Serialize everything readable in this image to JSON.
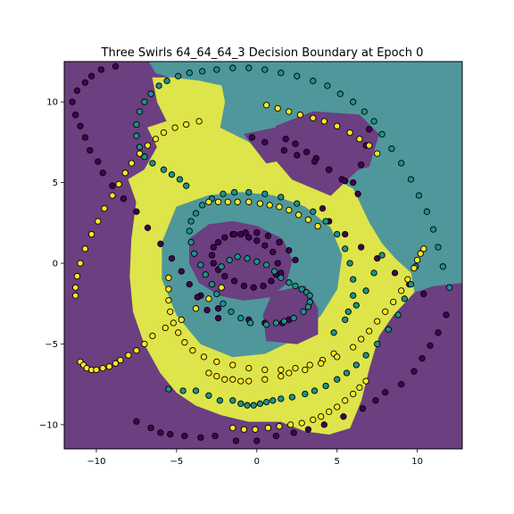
{
  "chart_data": {
    "type": "scatter",
    "title": "Three Swirls 64_64_64_3 Decision Boundary at Epoch 0",
    "xlabel": "",
    "ylabel": "",
    "xlim": [
      -12,
      12.8
    ],
    "ylim": [
      -11.5,
      12.5
    ],
    "xticks": [
      -10,
      -5,
      0,
      5,
      10
    ],
    "yticks": [
      -10,
      -5,
      0,
      5,
      10
    ],
    "xtick_labels": [
      "−10",
      "−5",
      "0",
      "5",
      "10"
    ],
    "ytick_labels": [
      "−10",
      "−5",
      "0",
      "5",
      "10"
    ],
    "grid": false,
    "legend": "none",
    "colors": {
      "class_0": "#440154",
      "class_1": "#21918c",
      "class_2": "#fde725",
      "region_0": "#6b3f80",
      "region_1": "#4f979a",
      "region_2": "#dde54a",
      "point_edge": "#000000"
    },
    "background_regions": [
      {
        "class": 0,
        "polygon": [
          [
            -12,
            12.5
          ],
          [
            -12,
            -11.5
          ],
          [
            12.8,
            -11.5
          ],
          [
            12.8,
            12.5
          ]
        ]
      },
      {
        "class": 1,
        "polygon": [
          [
            -6.7,
            12.5
          ],
          [
            12.8,
            12.5
          ],
          [
            12.8,
            -1.2
          ],
          [
            11.0,
            -1.4
          ],
          [
            9.8,
            -1.8
          ],
          [
            8.5,
            -3.2
          ],
          [
            7.6,
            -4.5
          ],
          [
            7.0,
            -6.5
          ],
          [
            6.5,
            -8.5
          ],
          [
            5.8,
            -10.2
          ],
          [
            4.5,
            -10.6
          ],
          [
            3.0,
            -10.4
          ],
          [
            1.5,
            -9.8
          ],
          [
            -0.5,
            -9.8
          ],
          [
            -2.2,
            -9.4
          ],
          [
            -3.8,
            -8.8
          ],
          [
            -5.0,
            -8.0
          ],
          [
            -6.0,
            -6.8
          ],
          [
            -6.8,
            -5.0
          ],
          [
            -7.3,
            -3.0
          ],
          [
            -7.4,
            -0.8
          ],
          [
            -7.2,
            1.5
          ],
          [
            -6.5,
            3.8
          ],
          [
            -5.5,
            5.6
          ],
          [
            -4.0,
            7.2
          ],
          [
            -2.8,
            8.1
          ],
          [
            -2.3,
            8.4
          ],
          [
            -2.0,
            10.0
          ],
          [
            -2.2,
            11.0
          ],
          [
            -3.6,
            11.3
          ],
          [
            -5.3,
            11.5
          ],
          [
            -6.3,
            11.8
          ]
        ]
      },
      {
        "class": 2,
        "polygon": [
          [
            -6.5,
            11.5
          ],
          [
            -5.3,
            11.5
          ],
          [
            -3.6,
            11.3
          ],
          [
            -2.2,
            11.0
          ],
          [
            -2.0,
            10.0
          ],
          [
            -2.3,
            8.4
          ],
          [
            -0.5,
            7.5
          ],
          [
            1.5,
            6.7
          ],
          [
            3.5,
            6.0
          ],
          [
            6.0,
            4.6
          ],
          [
            7.0,
            2.5
          ],
          [
            7.8,
            1.2
          ],
          [
            8.7,
            0.2
          ],
          [
            9.6,
            -0.6
          ],
          [
            9.8,
            -1.8
          ],
          [
            8.5,
            -3.2
          ],
          [
            7.6,
            -4.5
          ],
          [
            7.0,
            -6.5
          ],
          [
            6.5,
            -8.5
          ],
          [
            5.8,
            -10.2
          ],
          [
            4.5,
            -10.6
          ],
          [
            3.0,
            -10.4
          ],
          [
            1.5,
            -9.8
          ],
          [
            -0.5,
            -9.8
          ],
          [
            -2.2,
            -9.4
          ],
          [
            -3.8,
            -8.8
          ],
          [
            -5.0,
            -8.0
          ],
          [
            -6.0,
            -6.8
          ],
          [
            -7.0,
            -5.0
          ],
          [
            -7.7,
            -3.0
          ],
          [
            -7.9,
            -0.8
          ],
          [
            -7.8,
            1.5
          ],
          [
            -7.5,
            3.8
          ],
          [
            -8.0,
            5.2
          ],
          [
            -7.0,
            5.8
          ],
          [
            -6.2,
            7.2
          ],
          [
            -6.8,
            8.4
          ],
          [
            -5.6,
            8.8
          ],
          [
            -6.2,
            10.0
          ]
        ]
      },
      {
        "class": 1,
        "polygon": [
          [
            -5.0,
            3.5
          ],
          [
            -3.0,
            4.2
          ],
          [
            -1.0,
            4.4
          ],
          [
            1.0,
            4.2
          ],
          [
            3.0,
            3.5
          ],
          [
            4.6,
            2.2
          ],
          [
            5.3,
            0.5
          ],
          [
            5.0,
            -1.6
          ],
          [
            4.0,
            -3.2
          ],
          [
            2.6,
            -4.6
          ],
          [
            0.5,
            -5.6
          ],
          [
            -1.5,
            -5.8
          ],
          [
            -3.5,
            -5.0
          ],
          [
            -5.0,
            -3.2
          ],
          [
            -5.9,
            -1.0
          ],
          [
            -5.9,
            1.3
          ]
        ]
      },
      {
        "class": 0,
        "polygon": [
          [
            -4.2,
            1.5
          ],
          [
            -3.0,
            2.4
          ],
          [
            -1.5,
            2.6
          ],
          [
            0.0,
            2.3
          ],
          [
            1.6,
            1.5
          ],
          [
            2.2,
            0.2
          ],
          [
            1.8,
            -1.3
          ],
          [
            0.8,
            -2.1
          ],
          [
            -0.8,
            -2.3
          ],
          [
            -2.3,
            -2.0
          ],
          [
            -3.6,
            -1.2
          ],
          [
            -4.2,
            0.0
          ]
        ]
      },
      {
        "class": 0,
        "polygon": [
          [
            1.0,
            -1.8
          ],
          [
            3.0,
            -1.4
          ],
          [
            3.8,
            -2.8
          ],
          [
            3.8,
            -4.4
          ],
          [
            2.5,
            -5.0
          ],
          [
            0.6,
            -4.8
          ],
          [
            0.4,
            -3.2
          ]
        ]
      },
      {
        "class": 0,
        "polygon": [
          [
            1.2,
            8.5
          ],
          [
            3.5,
            9.4
          ],
          [
            6.4,
            9.2
          ],
          [
            7.6,
            8.0
          ],
          [
            7.0,
            6.0
          ],
          [
            6.3,
            5.8
          ],
          [
            4.6,
            4.2
          ],
          [
            2.2,
            5.2
          ],
          [
            1.0,
            6.6
          ]
        ]
      },
      {
        "class": 0,
        "polygon": [
          [
            -0.8,
            8.0
          ],
          [
            1.2,
            8.4
          ],
          [
            1.6,
            6.4
          ],
          [
            0.6,
            6.2
          ]
        ]
      }
    ],
    "series": [
      {
        "class": 0,
        "x": [
          -1.5,
          -1.0,
          -0.5,
          0.0,
          0.5,
          1.0,
          1.3,
          1.2,
          0.9,
          0.4,
          -0.2,
          -0.8,
          -1.4,
          -2.0,
          -2.4,
          -2.7,
          -2.8,
          -2.7,
          -2.4,
          -2.0,
          -1.4,
          -0.7,
          0.0,
          0.7,
          1.4,
          2.0,
          2.4,
          1.5,
          -3.5,
          -2.4,
          -0.5,
          0.5,
          1.6,
          2.0,
          -2.4,
          -3.1,
          -3.7,
          -4.2,
          -4.7,
          -5.3,
          -6.0,
          -6.8,
          -7.5,
          -8.3,
          -9.0,
          -9.6,
          -9.9,
          -10.4,
          -10.7,
          -11.0,
          -11.3,
          -11.5,
          -11.2,
          -10.7,
          -10.3,
          -9.7,
          -8.8,
          -7.5,
          -6.6,
          -6.0,
          -5.4,
          -4.5,
          -3.5,
          -2.6,
          -1.3,
          0.0,
          1.2,
          2.3,
          3.2,
          4.2,
          5.4,
          6.6,
          7.4,
          8.0,
          9.0,
          9.8,
          10.3,
          10.8,
          11.3,
          11.8,
          10.4,
          9.5,
          8.6,
          7.5,
          6.5,
          5.5,
          4.5,
          4.1,
          6.0,
          6.5,
          6.8,
          7.0,
          1.8,
          2.4,
          3.1,
          3.7,
          4.5,
          5.3,
          -0.3,
          0.5,
          1.7,
          2.5,
          3.6,
          4.5,
          5.5,
          6.3
        ],
        "y": [
          1.8,
          1.8,
          1.6,
          1.4,
          1.1,
          0.7,
          0.0,
          -0.7,
          -1.1,
          -1.4,
          -1.5,
          -1.4,
          -1.1,
          -0.8,
          -0.4,
          0.0,
          0.5,
          1.0,
          1.3,
          1.6,
          1.8,
          1.9,
          1.9,
          1.7,
          1.3,
          0.8,
          0.2,
          -0.6,
          -2.0,
          -2.8,
          -3.5,
          -3.7,
          -3.7,
          -3.5,
          -3.4,
          -2.9,
          -2.1,
          -1.3,
          -0.5,
          0.3,
          1.2,
          2.2,
          3.2,
          4.0,
          4.8,
          5.6,
          6.3,
          7.0,
          7.8,
          8.5,
          9.2,
          10.0,
          10.7,
          11.2,
          11.6,
          12.0,
          12.2,
          -9.8,
          -10.2,
          -10.5,
          -10.6,
          -10.7,
          -10.8,
          -10.7,
          -11.0,
          -11.0,
          -10.7,
          -10.5,
          -10.3,
          -10.0,
          -9.5,
          -9.0,
          -8.5,
          -8.0,
          -7.5,
          -6.7,
          -5.9,
          -5.1,
          -4.3,
          -3.2,
          -1.9,
          -1.3,
          -0.6,
          0.3,
          1.0,
          1.8,
          2.6,
          3.4,
          5.0,
          6.1,
          7.3,
          8.3,
          7.7,
          7.4,
          6.9,
          6.5,
          5.8,
          5.2,
          7.8,
          7.5,
          7.0,
          6.7,
          6.3,
          5.8,
          5.1,
          4.3
        ]
      },
      {
        "class": 1,
        "x": [
          -2.2,
          -1.7,
          -1.2,
          -0.6,
          0.0,
          0.6,
          1.1,
          1.5,
          2.0,
          2.4,
          2.8,
          3.1,
          3.3,
          3.3,
          3.2,
          2.9,
          2.3,
          1.7,
          1.2,
          0.6,
          -0.4,
          -1.0,
          -1.6,
          -2.1,
          -2.5,
          -2.8,
          -3.2,
          -3.5,
          -3.9,
          -4.1,
          -4.2,
          -4.1,
          -3.8,
          -3.4,
          -2.8,
          -2.1,
          -1.4,
          -0.5,
          0.5,
          1.5,
          2.5,
          3.5,
          4.3,
          5.0,
          5.5,
          5.8,
          6.0,
          6.0,
          5.7,
          -4.4,
          -4.8,
          -5.3,
          -5.8,
          -6.5,
          -7.0,
          -7.3,
          -7.5,
          -7.5,
          -7.3,
          -7.0,
          -6.6,
          -6.1,
          -5.6,
          -4.9,
          -4.2,
          -3.4,
          -2.5,
          -1.5,
          -0.5,
          0.5,
          1.5,
          2.5,
          3.5,
          4.4,
          5.2,
          6.0,
          6.7,
          7.3,
          7.8,
          8.4,
          9.0,
          9.6,
          10.1,
          10.6,
          11.0,
          11.3,
          11.6,
          12.0,
          -1.5,
          -1.0,
          -0.6,
          -0.2,
          0.2,
          0.6,
          1.0,
          1.5,
          2.2,
          3.0,
          3.6,
          4.3,
          5.0,
          5.6,
          6.2,
          6.8,
          7.5,
          8.2,
          8.8,
          9.2,
          9.6,
          9.9,
          -5.5,
          -4.6,
          -3.8,
          -3.0,
          -2.3,
          4.8,
          5.5,
          6.2,
          6.8,
          7.3,
          7.8
        ],
        "y": [
          -0.2,
          0.2,
          0.4,
          0.3,
          0.1,
          -0.1,
          -0.5,
          -0.9,
          -1.2,
          -1.4,
          -1.6,
          -1.8,
          -2.0,
          -2.4,
          -2.7,
          -3.0,
          -3.4,
          -3.6,
          -3.7,
          -3.8,
          -3.7,
          -3.4,
          -3.0,
          -2.5,
          -1.9,
          -1.3,
          -0.7,
          -0.1,
          0.6,
          1.3,
          2.0,
          2.6,
          3.1,
          3.6,
          4.0,
          4.3,
          4.4,
          4.4,
          4.3,
          4.1,
          3.7,
          3.2,
          2.6,
          1.8,
          0.9,
          0.0,
          -1.0,
          -2.0,
          -3.0,
          4.8,
          5.2,
          5.5,
          5.8,
          6.2,
          6.6,
          7.2,
          7.9,
          8.6,
          9.4,
          10.0,
          10.5,
          11.0,
          11.3,
          11.6,
          11.8,
          11.9,
          12.0,
          12.1,
          12.1,
          12.0,
          11.8,
          11.6,
          11.3,
          11.0,
          10.5,
          10.0,
          9.4,
          8.8,
          8.0,
          7.1,
          6.2,
          5.2,
          4.2,
          3.2,
          2.1,
          1.0,
          -0.2,
          -1.5,
          -8.5,
          -8.7,
          -8.8,
          -8.8,
          -8.7,
          -8.6,
          -8.5,
          -8.4,
          -8.3,
          -8.1,
          -7.9,
          -7.6,
          -7.2,
          -6.8,
          -6.3,
          -5.7,
          -5.0,
          -4.1,
          -3.2,
          -2.2,
          -1.3,
          -0.2,
          -7.8,
          -7.9,
          -7.9,
          -8.2,
          -8.5,
          -4.3,
          -3.5,
          -2.6,
          -1.7,
          -0.6,
          0.5
        ]
      },
      {
        "class": 2,
        "x": [
          -3.0,
          -2.4,
          -1.8,
          -1.2,
          -0.5,
          0.2,
          0.8,
          1.4,
          2.0,
          2.6,
          3.2,
          3.8,
          -5.5,
          -5.5,
          -5.5,
          -5.4,
          -5.2,
          -4.9,
          -4.5,
          -4.0,
          -3.3,
          -2.5,
          -1.5,
          -0.5,
          0.5,
          1.5,
          2.4,
          3.3,
          4.1,
          4.8,
          -3.0,
          -2.5,
          -2.0,
          -1.5,
          -1.0,
          -0.5,
          0.5,
          1.5,
          2.0,
          3.0,
          4.0,
          5.0,
          6.0,
          6.5,
          7.0,
          7.5,
          8.0,
          8.5,
          9.0,
          9.4,
          9.8,
          10.0,
          10.2,
          10.4,
          -11.0,
          -10.8,
          -10.6,
          -10.3,
          -10.0,
          -9.6,
          -9.2,
          -8.8,
          -8.5,
          -8.0,
          -7.5,
          -7.0,
          -6.5,
          -5.7,
          -4.7,
          -3.8,
          -3.0,
          -2.2,
          -11.3,
          -11.3,
          -11.2,
          -11.0,
          -10.7,
          -10.3,
          -9.9,
          -9.5,
          -9.0,
          -8.6,
          -8.2,
          -7.8,
          -7.3,
          -6.8,
          -6.3,
          -5.8,
          -5.1,
          -4.4,
          -3.6,
          0.6,
          1.3,
          2.0,
          2.7,
          3.5,
          4.2,
          5.0,
          5.8,
          6.4,
          7.0,
          7.5,
          -1.5,
          -0.8,
          -0.1,
          0.7,
          1.4,
          2.1,
          2.8,
          3.5,
          4.0,
          4.5,
          5.0,
          5.5,
          6.0,
          6.4,
          6.8
        ],
        "y": [
          3.8,
          3.8,
          3.8,
          3.8,
          3.8,
          3.7,
          3.6,
          3.5,
          3.3,
          3.0,
          2.7,
          2.3,
          -0.9,
          -1.6,
          -2.3,
          -3.0,
          -3.7,
          -4.3,
          -4.9,
          -5.4,
          -5.8,
          -6.1,
          -6.3,
          -6.5,
          -6.6,
          -6.6,
          -6.5,
          -6.3,
          -6.0,
          -5.6,
          -6.8,
          -7.0,
          -7.2,
          -7.2,
          -7.3,
          -7.3,
          -7.2,
          -7.0,
          -6.8,
          -6.6,
          -6.2,
          -5.8,
          -5.2,
          -4.7,
          -4.2,
          -3.6,
          -3.0,
          -2.4,
          -1.7,
          -1.0,
          -0.3,
          0.2,
          0.6,
          0.9,
          -6.1,
          -6.3,
          -6.5,
          -6.6,
          -6.6,
          -6.5,
          -6.4,
          -6.2,
          -6.0,
          -5.7,
          -5.4,
          -5.0,
          -4.5,
          -4.0,
          -3.5,
          -2.8,
          -2.2,
          -1.5,
          -2.0,
          -1.5,
          -0.8,
          0.0,
          0.9,
          1.8,
          2.6,
          3.4,
          4.2,
          4.9,
          5.6,
          6.2,
          6.8,
          7.3,
          7.7,
          8.1,
          8.4,
          8.6,
          8.8,
          9.8,
          9.6,
          9.4,
          9.2,
          9.0,
          8.8,
          8.5,
          8.1,
          7.7,
          7.3,
          6.8,
          -10.2,
          -10.3,
          -10.3,
          -10.2,
          -10.1,
          -10.0,
          -9.9,
          -9.7,
          -9.5,
          -9.2,
          -8.9,
          -8.5,
          -8.1,
          -7.7,
          -7.3
        ]
      }
    ]
  }
}
